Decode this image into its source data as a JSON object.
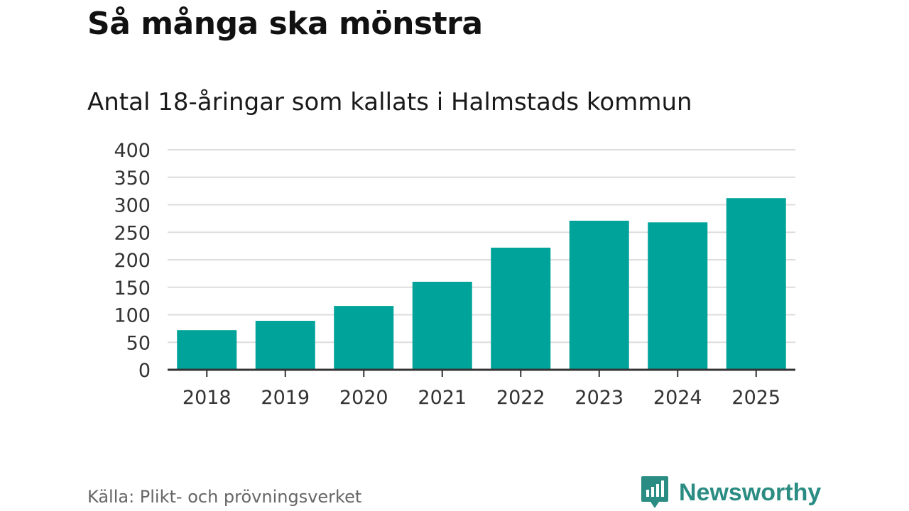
{
  "header": {
    "title": "Så många ska mönstra",
    "subtitle": "Antal 18-åringar som kallats i Halmstads kommun"
  },
  "footer": {
    "source": "Källa: Plikt- och prövningsverket",
    "brand": "Newsworthy",
    "brand_icon": "newsworthy-logo-icon"
  },
  "colors": {
    "bar": "#00a39a",
    "grid": "#dddddd",
    "axis": "#333333",
    "brand": "#2a8c82"
  },
  "chart_data": {
    "type": "bar",
    "categories": [
      "2018",
      "2019",
      "2020",
      "2021",
      "2022",
      "2023",
      "2024",
      "2025"
    ],
    "values": [
      72,
      89,
      116,
      160,
      222,
      271,
      268,
      312
    ],
    "yticks": [
      "0",
      "50",
      "100",
      "150",
      "200",
      "250",
      "300",
      "350",
      "400"
    ],
    "ylim": [
      0,
      400
    ],
    "grid": true,
    "legend": false
  }
}
